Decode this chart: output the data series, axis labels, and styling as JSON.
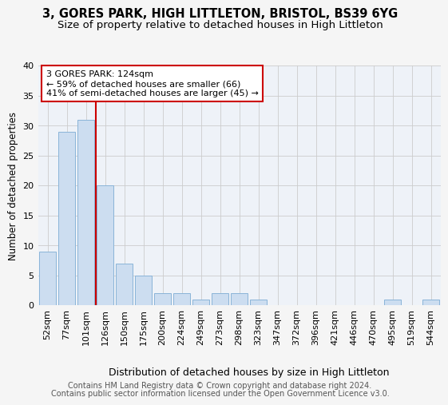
{
  "title1": "3, GORES PARK, HIGH LITTLETON, BRISTOL, BS39 6YG",
  "title2": "Size of property relative to detached houses in High Littleton",
  "xlabel": "Distribution of detached houses by size in High Littleton",
  "ylabel": "Number of detached properties",
  "categories": [
    "52sqm",
    "77sqm",
    "101sqm",
    "126sqm",
    "150sqm",
    "175sqm",
    "200sqm",
    "224sqm",
    "249sqm",
    "273sqm",
    "298sqm",
    "323sqm",
    "347sqm",
    "372sqm",
    "396sqm",
    "421sqm",
    "446sqm",
    "470sqm",
    "495sqm",
    "519sqm",
    "544sqm"
  ],
  "values": [
    9,
    29,
    31,
    20,
    7,
    5,
    2,
    2,
    1,
    2,
    2,
    1,
    0,
    0,
    0,
    0,
    0,
    0,
    1,
    0,
    1
  ],
  "bar_color": "#ccddf0",
  "bar_edge_color": "#8ab4d8",
  "reference_line_color": "#cc0000",
  "reference_line_x": 2.5,
  "annotation_line1": "3 GORES PARK: 124sqm",
  "annotation_line2": "← 59% of detached houses are smaller (66)",
  "annotation_line3": "41% of semi-detached houses are larger (45) →",
  "annotation_box_color": "#ffffff",
  "annotation_box_edge_color": "#cc0000",
  "ylim": [
    0,
    40
  ],
  "yticks": [
    0,
    5,
    10,
    15,
    20,
    25,
    30,
    35,
    40
  ],
  "footer1": "Contains HM Land Registry data © Crown copyright and database right 2024.",
  "footer2": "Contains public sector information licensed under the Open Government Licence v3.0.",
  "bg_color": "#f5f5f5",
  "plot_bg_color": "#eef2f8",
  "grid_color": "#cccccc",
  "title1_fontsize": 10.5,
  "title2_fontsize": 9.5,
  "xlabel_fontsize": 9,
  "ylabel_fontsize": 8.5,
  "tick_fontsize": 8,
  "annotation_fontsize": 8,
  "footer_fontsize": 7
}
